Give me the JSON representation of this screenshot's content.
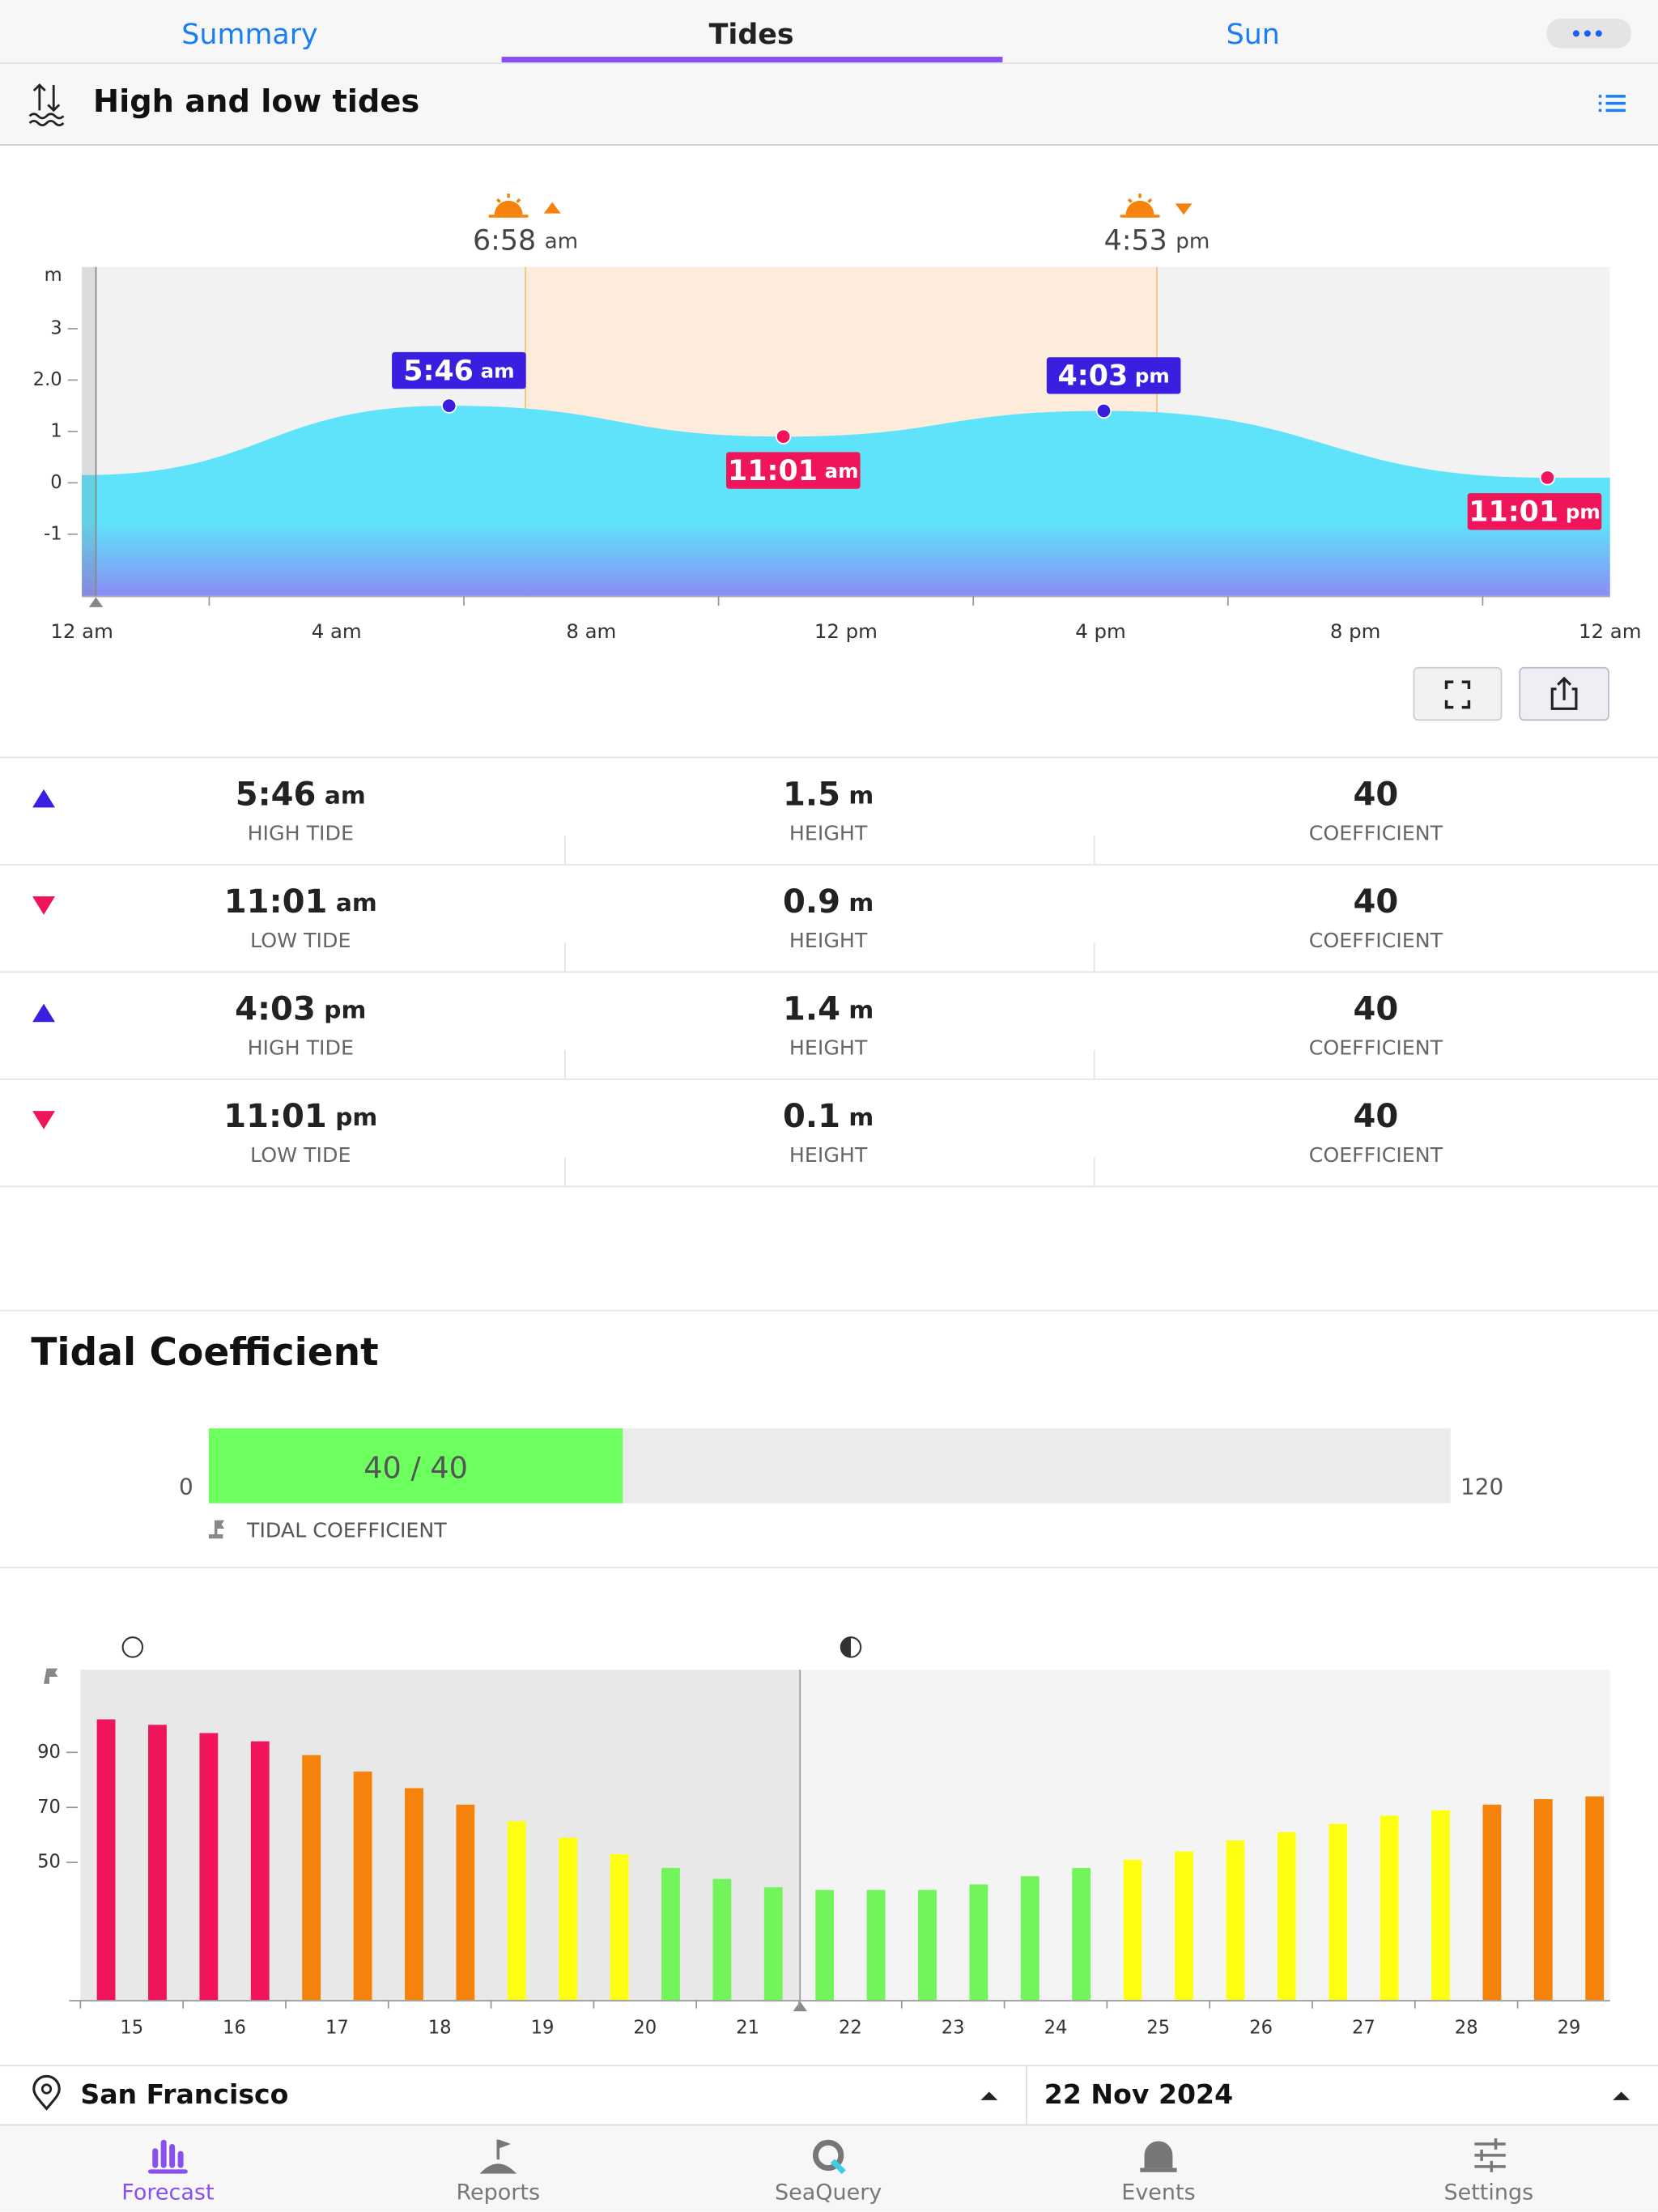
{
  "tabs": {
    "items": [
      "Summary",
      "Tides",
      "Sun"
    ],
    "active": 1
  },
  "section": {
    "title": "High and low tides"
  },
  "tide_chart": {
    "type": "area",
    "y_label": "m",
    "ylim": [
      -2.2,
      4.2
    ],
    "yticks": [
      -1,
      0,
      1,
      {
        "value": 2,
        "label": "2.0"
      },
      3
    ],
    "xlim": [
      0,
      24
    ],
    "xticks": [
      {
        "value": 0,
        "label": "12 am"
      },
      {
        "value": 4,
        "label": "4 am"
      },
      {
        "value": 8,
        "label": "8 am"
      },
      {
        "value": 12,
        "label": "12 pm"
      },
      {
        "value": 16,
        "label": "4 pm"
      },
      {
        "value": 20,
        "label": "8 pm"
      },
      {
        "value": 24,
        "label": "12 am"
      }
    ],
    "minor_xticks": [
      2,
      6,
      10,
      14,
      18,
      22
    ],
    "x": [
      0,
      5.767,
      11.017,
      16.05,
      23.017,
      24
    ],
    "y": [
      0.15,
      1.5,
      0.9,
      1.4,
      0.1,
      0.1
    ],
    "sun": [
      {
        "x": 6.967,
        "time": "6:58",
        "period": "am"
      },
      {
        "x": 16.883,
        "time": "4:53",
        "period": "pm"
      }
    ],
    "color": "#5fe3fa"
  },
  "tide_table": {
    "rows": [
      {
        "time": "5:46",
        "period": "am",
        "kind": "HIGH TIDE",
        "height": 1.5,
        "unit": "m",
        "height_label": "HEIGHT",
        "coefficient": 40,
        "coefficient_label": "COEFFICIENT"
      },
      {
        "time": "11:01",
        "period": "am",
        "kind": "LOW TIDE",
        "height": 0.9,
        "unit": "m",
        "height_label": "HEIGHT",
        "coefficient": 40,
        "coefficient_label": "COEFFICIENT"
      },
      {
        "time": "4:03",
        "period": "pm",
        "kind": "HIGH TIDE",
        "height": 1.4,
        "unit": "m",
        "height_label": "HEIGHT",
        "coefficient": 40,
        "coefficient_label": "COEFFICIENT"
      },
      {
        "time": "11:01",
        "period": "pm",
        "kind": "LOW TIDE",
        "height": 0.1,
        "unit": "m",
        "height_label": "HEIGHT",
        "coefficient": 40,
        "coefficient_label": "COEFFICIENT"
      }
    ]
  },
  "coefficient": {
    "title": "Tidal Coefficient",
    "min": 0,
    "max": 120,
    "value": 40,
    "value_label": "40 / 40",
    "caption": "TIDAL COEFFICIENT",
    "color": "#6dff5e"
  },
  "coefficient_chart": {
    "type": "bar",
    "xlim": [
      14.5,
      29.4
    ],
    "xticks": [
      15,
      16,
      17,
      18,
      19,
      20,
      21,
      22,
      23,
      24,
      25,
      26,
      27,
      28,
      29
    ],
    "ylim": [
      0,
      120
    ],
    "yticks": [
      50,
      70,
      90
    ],
    "x": [
      14.75,
      15.25,
      15.75,
      16.25,
      16.75,
      17.25,
      17.75,
      18.25,
      18.75,
      19.25,
      19.75,
      20.25,
      20.75,
      21.25,
      21.75,
      22.25,
      22.75,
      23.25,
      23.75,
      24.25,
      24.75,
      25.25,
      25.75,
      26.25,
      26.75,
      27.25,
      27.75,
      28.25,
      28.75,
      29.25
    ],
    "values": [
      102,
      100,
      97,
      94,
      89,
      83,
      77,
      71,
      65,
      59,
      53,
      48,
      44,
      41,
      40,
      40,
      40,
      42,
      45,
      48,
      51,
      54,
      58,
      61,
      64,
      67,
      69,
      71,
      73,
      74
    ],
    "color_scale": [
      {
        "min": 0,
        "color": "#72f55a"
      },
      {
        "min": 50,
        "color": "#ffff14"
      },
      {
        "min": 70,
        "color": "#f5820a"
      },
      {
        "min": 90,
        "color": "#f0145a"
      }
    ]
  },
  "location": "San Francisco",
  "date": "22 Nov 2024",
  "nav": {
    "items": [
      "Forecast",
      "Reports",
      "SeaQuery",
      "Events",
      "Settings"
    ],
    "active": 0
  }
}
